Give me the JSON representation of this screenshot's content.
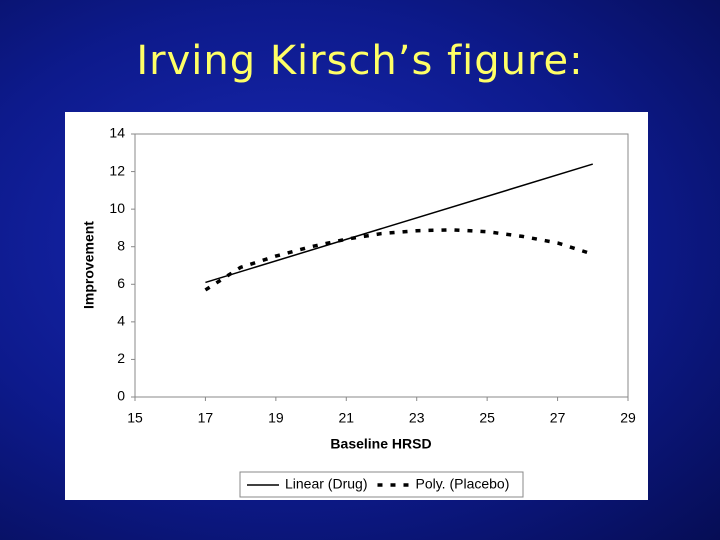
{
  "chart_data": {
    "type": "line",
    "title": "Irving Kirsch’s figure:",
    "x_label": "Baseline HRSD",
    "y_label": "Improvement",
    "xlim": [
      15,
      29
    ],
    "xticks": [
      15,
      17,
      19,
      21,
      23,
      25,
      27,
      29
    ],
    "ylim": [
      0,
      14
    ],
    "yticks": [
      0,
      2,
      4,
      6,
      8,
      10,
      12,
      14
    ],
    "grid": false,
    "legend": "bottom",
    "series": [
      {
        "name": "Linear (Drug)",
        "color": "#000000",
        "style": "solid",
        "x": [
          17,
          28
        ],
        "values": [
          6.1,
          12.4
        ]
      },
      {
        "name": "Poly. (Placebo)",
        "color": "#000000",
        "style": "dashed",
        "x": [
          17,
          18,
          19,
          20,
          21,
          22,
          23,
          24,
          25,
          26,
          27,
          28
        ],
        "values": [
          5.7,
          6.9,
          7.5,
          8.0,
          8.4,
          8.7,
          8.85,
          8.9,
          8.8,
          8.55,
          8.2,
          7.6
        ]
      }
    ]
  }
}
